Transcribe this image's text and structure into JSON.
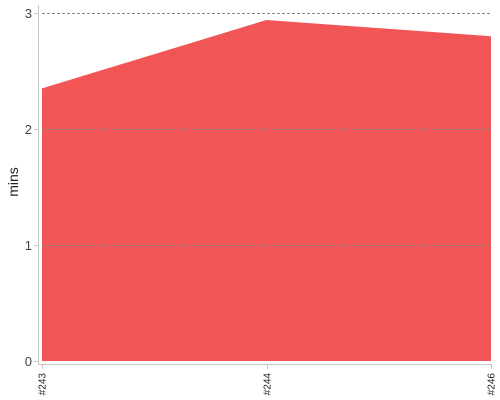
{
  "chart_data": {
    "type": "area",
    "categories": [
      "#243",
      "#244",
      "#246"
    ],
    "values": [
      2.35,
      2.94,
      2.8
    ],
    "title": "",
    "xlabel": "",
    "ylabel": "mins",
    "ylim": [
      0,
      3
    ],
    "yticks": [
      0,
      1,
      2,
      3
    ],
    "grid": true,
    "fill_color": "#f25555",
    "grid_color": "#888888",
    "axis_color": "#c8c8c8"
  }
}
